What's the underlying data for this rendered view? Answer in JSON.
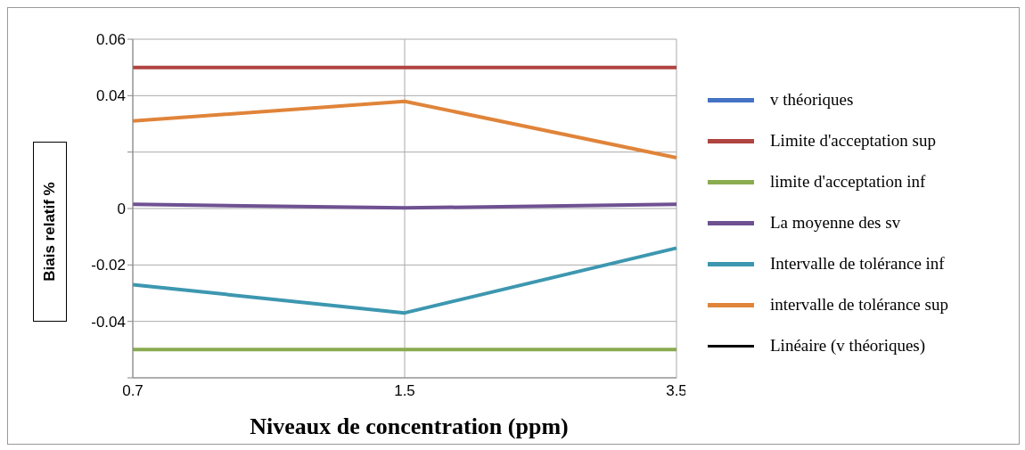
{
  "chart_data": {
    "type": "line",
    "xlabel": "Niveaux de concentration (ppm)",
    "ylabel": "Biais relatif %",
    "categories": [
      "0.7",
      "1.5",
      "3.5"
    ],
    "series": [
      {
        "name": "v théoriques",
        "color": "#4472c4",
        "values": [
          null,
          null,
          null
        ]
      },
      {
        "name": "Limite d'acceptation sup",
        "color": "#b04440",
        "values": [
          0.05,
          0.05,
          0.05
        ]
      },
      {
        "name": "limite d'acceptation inf",
        "color": "#8aab50",
        "values": [
          -0.05,
          -0.05,
          -0.05
        ]
      },
      {
        "name": "La moyenne des sv",
        "color": "#6f5192",
        "values": [
          0.0015,
          0.0002,
          0.0015
        ]
      },
      {
        "name": "Intervalle de tolérance inf",
        "color": "#3d97b0",
        "values": [
          -0.027,
          -0.037,
          -0.014
        ]
      },
      {
        "name": "intervalle de tolérance sup",
        "color": "#e0843a",
        "values": [
          0.031,
          0.038,
          0.018
        ]
      },
      {
        "name": "Linéaire (v théoriques)",
        "color": "#000000",
        "values": [
          null,
          null,
          null
        ]
      }
    ],
    "ylim": [
      -0.06,
      0.06
    ],
    "yticks": [
      0.06,
      0.04,
      {
        "value": 0.02,
        "label": null
      },
      0,
      -0.02,
      -0.04,
      {
        "value": -0.06,
        "label": null
      }
    ],
    "grid": true,
    "legend": "right",
    "marker": "none",
    "line_style": "solid"
  }
}
